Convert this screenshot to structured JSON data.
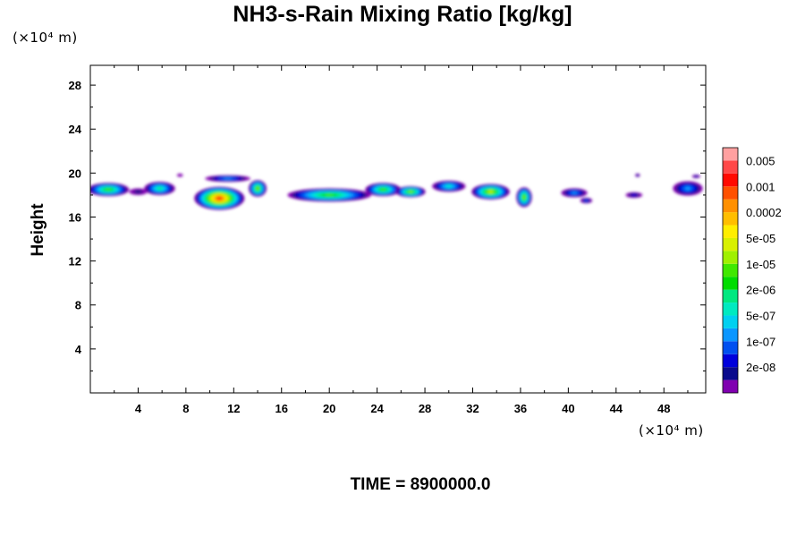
{
  "chart_data": {
    "type": "heatmap",
    "title": "NH3-s-Rain Mixing Ratio [kg/kg]",
    "xlabel": "",
    "ylabel": "Height",
    "x_unit": "(×10⁴ m)",
    "y_unit": "(×10⁴ m)",
    "xlim": [
      0,
      51.5
    ],
    "ylim": [
      0,
      29.8
    ],
    "x_ticks": [
      4,
      8,
      12,
      16,
      20,
      24,
      28,
      32,
      36,
      40,
      44,
      48
    ],
    "y_ticks": [
      4,
      8,
      12,
      16,
      20,
      24,
      28
    ],
    "colorbar": {
      "levels": [
        {
          "color": "#8000b0"
        },
        {
          "color": "#0a0a8c",
          "label": "2e-08"
        },
        {
          "color": "#0000dc"
        },
        {
          "color": "#0050f0",
          "label": "1e-07"
        },
        {
          "color": "#0a96ff"
        },
        {
          "color": "#00d0f0",
          "label": "5e-07"
        },
        {
          "color": "#00eac0"
        },
        {
          "color": "#00e880",
          "label": "2e-06"
        },
        {
          "color": "#00dc00"
        },
        {
          "color": "#40e800",
          "label": "1e-05"
        },
        {
          "color": "#a0f000"
        },
        {
          "color": "#d8f000",
          "label": "5e-05"
        },
        {
          "color": "#ffee00"
        },
        {
          "color": "#ffbe00",
          "label": "0.0002"
        },
        {
          "color": "#ff9000"
        },
        {
          "color": "#ff5000",
          "label": "0.001"
        },
        {
          "color": "#ff0a00"
        },
        {
          "color": "#ff4848",
          "label": "0.005"
        },
        {
          "color": "#ffa0a0"
        }
      ]
    },
    "features": [
      {
        "x": 1.5,
        "y": 18.5,
        "w": 3.5,
        "h": 1.2,
        "level": 9
      },
      {
        "x": 4.0,
        "y": 18.3,
        "w": 1.5,
        "h": 0.6,
        "level": 1
      },
      {
        "x": 5.8,
        "y": 18.6,
        "w": 2.6,
        "h": 1.2,
        "level": 7
      },
      {
        "x": 7.5,
        "y": 19.8,
        "w": 0.5,
        "h": 0.3,
        "level": 0
      },
      {
        "x": 10.8,
        "y": 17.7,
        "w": 4.2,
        "h": 2.1,
        "level": 16
      },
      {
        "x": 11.5,
        "y": 19.5,
        "w": 3.8,
        "h": 0.6,
        "level": 4
      },
      {
        "x": 14.0,
        "y": 18.6,
        "w": 1.5,
        "h": 1.5,
        "level": 10
      },
      {
        "x": 20.0,
        "y": 18.0,
        "w": 7.0,
        "h": 1.2,
        "level": 9
      },
      {
        "x": 24.5,
        "y": 18.5,
        "w": 3.0,
        "h": 1.2,
        "level": 9
      },
      {
        "x": 26.8,
        "y": 18.3,
        "w": 2.5,
        "h": 1.0,
        "level": 10
      },
      {
        "x": 30.0,
        "y": 18.8,
        "w": 2.8,
        "h": 1.0,
        "level": 6
      },
      {
        "x": 33.5,
        "y": 18.3,
        "w": 3.2,
        "h": 1.4,
        "level": 11
      },
      {
        "x": 36.3,
        "y": 17.8,
        "w": 1.3,
        "h": 1.8,
        "level": 10
      },
      {
        "x": 40.5,
        "y": 18.2,
        "w": 2.2,
        "h": 0.8,
        "level": 4
      },
      {
        "x": 41.5,
        "y": 17.5,
        "w": 1.0,
        "h": 0.5,
        "level": 3
      },
      {
        "x": 45.8,
        "y": 19.8,
        "w": 0.4,
        "h": 0.3,
        "level": 2
      },
      {
        "x": 45.5,
        "y": 18.0,
        "w": 1.4,
        "h": 0.5,
        "level": 2
      },
      {
        "x": 50.0,
        "y": 18.6,
        "w": 2.5,
        "h": 1.3,
        "level": 4
      },
      {
        "x": 50.7,
        "y": 19.7,
        "w": 0.7,
        "h": 0.3,
        "level": 2
      }
    ]
  },
  "footer": {
    "time_label": "TIME = 8900000.0"
  }
}
